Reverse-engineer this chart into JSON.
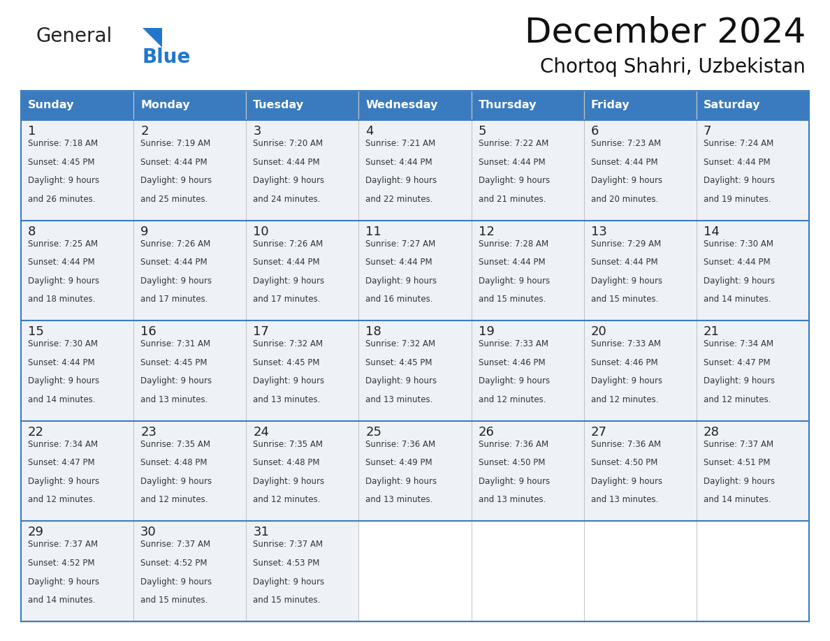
{
  "title": "December 2024",
  "subtitle": "Chortoq Shahri, Uzbekistan",
  "header_bg_color": "#3a7bbf",
  "header_text_color": "#ffffff",
  "cell_bg_color": "#eef2f7",
  "cell_bg_empty": "#ffffff",
  "day_headers": [
    "Sunday",
    "Monday",
    "Tuesday",
    "Wednesday",
    "Thursday",
    "Friday",
    "Saturday"
  ],
  "days_data": [
    {
      "day": 1,
      "col": 0,
      "row": 0,
      "sunrise": "7:18 AM",
      "sunset": "4:45 PM",
      "daylight_min": "26 minutes."
    },
    {
      "day": 2,
      "col": 1,
      "row": 0,
      "sunrise": "7:19 AM",
      "sunset": "4:44 PM",
      "daylight_min": "25 minutes."
    },
    {
      "day": 3,
      "col": 2,
      "row": 0,
      "sunrise": "7:20 AM",
      "sunset": "4:44 PM",
      "daylight_min": "24 minutes."
    },
    {
      "day": 4,
      "col": 3,
      "row": 0,
      "sunrise": "7:21 AM",
      "sunset": "4:44 PM",
      "daylight_min": "22 minutes."
    },
    {
      "day": 5,
      "col": 4,
      "row": 0,
      "sunrise": "7:22 AM",
      "sunset": "4:44 PM",
      "daylight_min": "21 minutes."
    },
    {
      "day": 6,
      "col": 5,
      "row": 0,
      "sunrise": "7:23 AM",
      "sunset": "4:44 PM",
      "daylight_min": "20 minutes."
    },
    {
      "day": 7,
      "col": 6,
      "row": 0,
      "sunrise": "7:24 AM",
      "sunset": "4:44 PM",
      "daylight_min": "19 minutes."
    },
    {
      "day": 8,
      "col": 0,
      "row": 1,
      "sunrise": "7:25 AM",
      "sunset": "4:44 PM",
      "daylight_min": "18 minutes."
    },
    {
      "day": 9,
      "col": 1,
      "row": 1,
      "sunrise": "7:26 AM",
      "sunset": "4:44 PM",
      "daylight_min": "17 minutes."
    },
    {
      "day": 10,
      "col": 2,
      "row": 1,
      "sunrise": "7:26 AM",
      "sunset": "4:44 PM",
      "daylight_min": "17 minutes."
    },
    {
      "day": 11,
      "col": 3,
      "row": 1,
      "sunrise": "7:27 AM",
      "sunset": "4:44 PM",
      "daylight_min": "16 minutes."
    },
    {
      "day": 12,
      "col": 4,
      "row": 1,
      "sunrise": "7:28 AM",
      "sunset": "4:44 PM",
      "daylight_min": "15 minutes."
    },
    {
      "day": 13,
      "col": 5,
      "row": 1,
      "sunrise": "7:29 AM",
      "sunset": "4:44 PM",
      "daylight_min": "15 minutes."
    },
    {
      "day": 14,
      "col": 6,
      "row": 1,
      "sunrise": "7:30 AM",
      "sunset": "4:44 PM",
      "daylight_min": "14 minutes."
    },
    {
      "day": 15,
      "col": 0,
      "row": 2,
      "sunrise": "7:30 AM",
      "sunset": "4:44 PM",
      "daylight_min": "14 minutes."
    },
    {
      "day": 16,
      "col": 1,
      "row": 2,
      "sunrise": "7:31 AM",
      "sunset": "4:45 PM",
      "daylight_min": "13 minutes."
    },
    {
      "day": 17,
      "col": 2,
      "row": 2,
      "sunrise": "7:32 AM",
      "sunset": "4:45 PM",
      "daylight_min": "13 minutes."
    },
    {
      "day": 18,
      "col": 3,
      "row": 2,
      "sunrise": "7:32 AM",
      "sunset": "4:45 PM",
      "daylight_min": "13 minutes."
    },
    {
      "day": 19,
      "col": 4,
      "row": 2,
      "sunrise": "7:33 AM",
      "sunset": "4:46 PM",
      "daylight_min": "12 minutes."
    },
    {
      "day": 20,
      "col": 5,
      "row": 2,
      "sunrise": "7:33 AM",
      "sunset": "4:46 PM",
      "daylight_min": "12 minutes."
    },
    {
      "day": 21,
      "col": 6,
      "row": 2,
      "sunrise": "7:34 AM",
      "sunset": "4:47 PM",
      "daylight_min": "12 minutes."
    },
    {
      "day": 22,
      "col": 0,
      "row": 3,
      "sunrise": "7:34 AM",
      "sunset": "4:47 PM",
      "daylight_min": "12 minutes."
    },
    {
      "day": 23,
      "col": 1,
      "row": 3,
      "sunrise": "7:35 AM",
      "sunset": "4:48 PM",
      "daylight_min": "12 minutes."
    },
    {
      "day": 24,
      "col": 2,
      "row": 3,
      "sunrise": "7:35 AM",
      "sunset": "4:48 PM",
      "daylight_min": "12 minutes."
    },
    {
      "day": 25,
      "col": 3,
      "row": 3,
      "sunrise": "7:36 AM",
      "sunset": "4:49 PM",
      "daylight_min": "13 minutes."
    },
    {
      "day": 26,
      "col": 4,
      "row": 3,
      "sunrise": "7:36 AM",
      "sunset": "4:50 PM",
      "daylight_min": "13 minutes."
    },
    {
      "day": 27,
      "col": 5,
      "row": 3,
      "sunrise": "7:36 AM",
      "sunset": "4:50 PM",
      "daylight_min": "13 minutes."
    },
    {
      "day": 28,
      "col": 6,
      "row": 3,
      "sunrise": "7:37 AM",
      "sunset": "4:51 PM",
      "daylight_min": "14 minutes."
    },
    {
      "day": 29,
      "col": 0,
      "row": 4,
      "sunrise": "7:37 AM",
      "sunset": "4:52 PM",
      "daylight_min": "14 minutes."
    },
    {
      "day": 30,
      "col": 1,
      "row": 4,
      "sunrise": "7:37 AM",
      "sunset": "4:52 PM",
      "daylight_min": "15 minutes."
    },
    {
      "day": 31,
      "col": 2,
      "row": 4,
      "sunrise": "7:37 AM",
      "sunset": "4:53 PM",
      "daylight_min": "15 minutes."
    }
  ],
  "logo_general_color": "#222222",
  "logo_blue_color": "#2277cc",
  "logo_triangle_color": "#2277cc",
  "separator_line_color": "#3a7bbf",
  "num_rows": 5,
  "num_cols": 7,
  "fig_width": 11.88,
  "fig_height": 9.18
}
